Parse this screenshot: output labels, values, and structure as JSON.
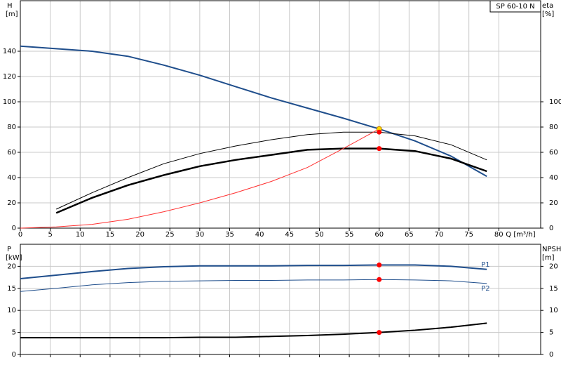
{
  "chart_data": [
    {
      "type": "line",
      "title": "SP 60-10 N",
      "y_label": "H",
      "y_unit": "[m]",
      "y2_label": "eta",
      "y2_unit": "[%]",
      "x_label": "Q [m³/h]",
      "x": [
        0,
        6,
        12,
        18,
        24,
        30,
        36,
        42,
        48,
        54,
        60,
        66,
        72,
        78
      ],
      "xlim": [
        0,
        87
      ],
      "xticks": [
        0,
        5,
        10,
        15,
        20,
        25,
        30,
        35,
        40,
        45,
        50,
        55,
        60,
        65,
        70,
        75,
        80
      ],
      "ylim": [
        0,
        180
      ],
      "yticks": [
        0,
        20,
        40,
        60,
        80,
        100,
        120,
        140
      ],
      "y2lim": [
        0,
        180
      ],
      "y2ticks": [
        0,
        20,
        40,
        60,
        80,
        100
      ],
      "grid": true,
      "series": [
        {
          "color": "#1f4e8c",
          "width": 2,
          "values": [
            144,
            142,
            140,
            136,
            129,
            121,
            112,
            103,
            95,
            87,
            78.5,
            69,
            57,
            41
          ]
        },
        {
          "color": "#000000",
          "width": 1,
          "axis": "y2",
          "values": [
            null,
            15,
            28,
            40,
            51,
            59,
            65,
            70,
            74,
            76,
            76,
            73,
            66,
            54
          ]
        },
        {
          "color": "#000000",
          "width": 2.5,
          "axis": "y2",
          "values": [
            null,
            12,
            24,
            34,
            42,
            49,
            54,
            58,
            62,
            63,
            63,
            61,
            55,
            45
          ]
        },
        {
          "color": "#ff3030",
          "width": 1,
          "values": [
            0,
            1,
            3,
            7,
            13,
            20,
            28,
            37,
            48,
            63,
            78.5,
            null,
            null,
            null
          ]
        }
      ],
      "markers": [
        {
          "x": 60,
          "y": 78.5,
          "color": "#ffd700"
        },
        {
          "x": 60,
          "y": 76,
          "color": "#ff0000"
        },
        {
          "x": 60,
          "y": 63,
          "color": "#ff0000"
        }
      ]
    },
    {
      "type": "line",
      "y_label": "P",
      "y_unit": "[kW]",
      "y2_label": "NPSH",
      "y2_unit": "[m]",
      "x": [
        0,
        6,
        12,
        18,
        24,
        30,
        36,
        42,
        48,
        54,
        60,
        66,
        72,
        78
      ],
      "xlim": [
        0,
        87
      ],
      "xticks": [
        0,
        5,
        10,
        15,
        20,
        25,
        30,
        35,
        40,
        45,
        50,
        55,
        60,
        65,
        70,
        75,
        80
      ],
      "xtick_labels": false,
      "ylim": [
        0,
        25
      ],
      "yticks": [
        0,
        5,
        10,
        15,
        20
      ],
      "y2lim": [
        0,
        25
      ],
      "y2ticks": [
        0,
        5,
        10,
        15,
        20
      ],
      "grid": true,
      "series": [
        {
          "name": "P1",
          "color": "#1f4e8c",
          "width": 2,
          "values": [
            17.2,
            18,
            18.8,
            19.5,
            19.9,
            20.1,
            20.1,
            20.1,
            20.2,
            20.2,
            20.3,
            20.3,
            20,
            19.3
          ]
        },
        {
          "name": "P2",
          "color": "#1f4e8c",
          "width": 1,
          "values": [
            14.3,
            15,
            15.8,
            16.3,
            16.6,
            16.7,
            16.8,
            16.8,
            16.9,
            16.9,
            17,
            16.9,
            16.7,
            16.1
          ]
        },
        {
          "color": "#000000",
          "width": 2,
          "axis": "y2",
          "values": [
            3.8,
            3.8,
            3.8,
            3.8,
            3.8,
            3.9,
            3.9,
            4.1,
            4.3,
            4.6,
            5,
            5.5,
            6.2,
            7.1
          ]
        }
      ],
      "markers": [
        {
          "x": 60,
          "y": 20.3,
          "color": "#ff0000"
        },
        {
          "x": 60,
          "y": 17,
          "color": "#ff0000"
        },
        {
          "x": 60,
          "y": 5,
          "color": "#ff0000",
          "axis": "y2"
        }
      ]
    }
  ]
}
